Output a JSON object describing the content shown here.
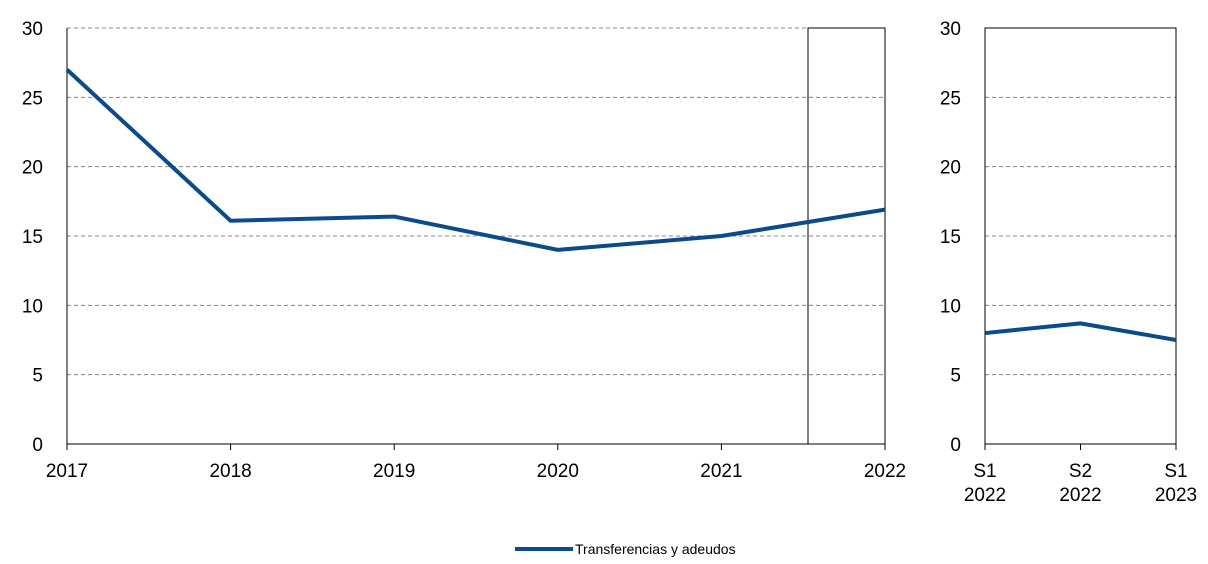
{
  "chart_data": [
    {
      "type": "line",
      "categories": [
        "2017",
        "2018",
        "2019",
        "2020",
        "2021",
        "2022"
      ],
      "values": [
        27.0,
        16.1,
        16.4,
        14.0,
        15.0,
        16.9
      ],
      "color": "#0b4a8b",
      "ylim": [
        0,
        30
      ],
      "yticks": [
        0,
        5,
        10,
        15,
        20,
        25,
        30
      ],
      "grid": true
    },
    {
      "type": "line",
      "categories": [
        "S1 2022",
        "S2 2022",
        "S1 2023"
      ],
      "values": [
        8.0,
        8.7,
        7.5
      ],
      "color": "#0b4a8b",
      "ylim": [
        0,
        30
      ],
      "yticks": [
        0,
        5,
        10,
        15,
        20,
        25,
        30
      ],
      "grid": true
    }
  ],
  "legend": {
    "label": "Transferencias y adeudos",
    "color": "#0b4a8b"
  }
}
